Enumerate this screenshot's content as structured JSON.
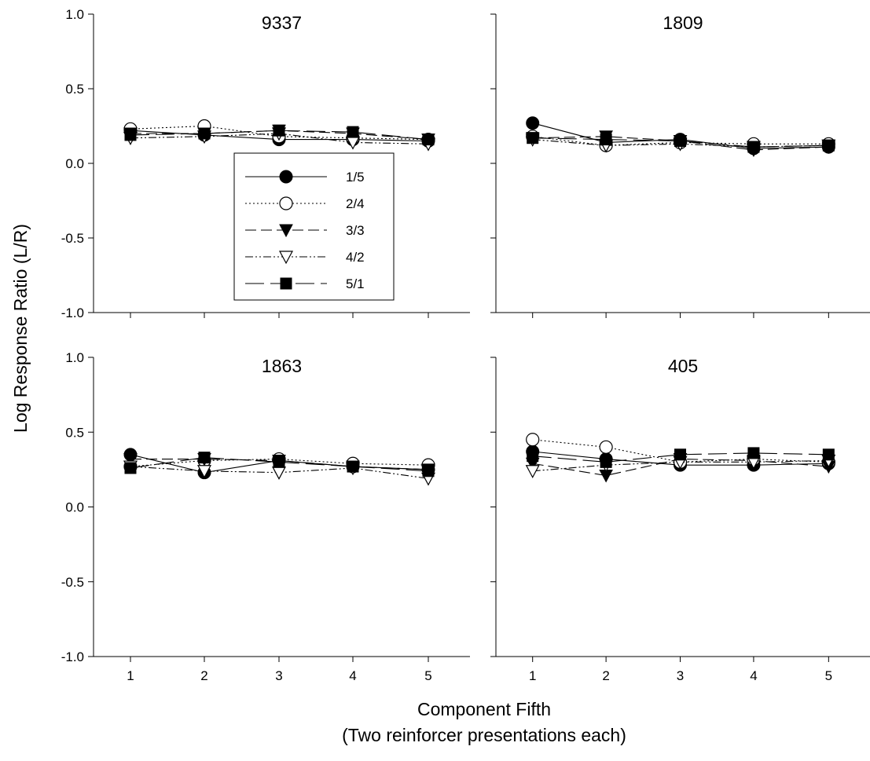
{
  "figure": {
    "ylabel": "Log Response Ratio (L/R)",
    "xlabel_line1": "Component Fifth",
    "xlabel_line2": "(Two reinforcer presentations each)"
  },
  "legend": {
    "placement": "inside top-left panel",
    "entries": [
      {
        "label": "1/5",
        "marker": "filled-circle",
        "line": "solid"
      },
      {
        "label": "2/4",
        "marker": "open-circle",
        "line": "dotted"
      },
      {
        "label": "3/3",
        "marker": "filled-triangle-down",
        "line": "dashed"
      },
      {
        "label": "4/2",
        "marker": "open-triangle-down",
        "line": "dash-dot-dot"
      },
      {
        "label": "5/1",
        "marker": "filled-square",
        "line": "long-dash"
      }
    ]
  },
  "chart_data": [
    {
      "type": "line",
      "title": "9337",
      "x": [
        1,
        2,
        3,
        4,
        5
      ],
      "xticks": [
        "1",
        "2",
        "3",
        "4",
        "5"
      ],
      "ylim": [
        -1.0,
        1.0
      ],
      "yticks": [
        "1.0",
        "0.5",
        "0.0",
        "-0.5",
        "-1.0"
      ],
      "series": [
        {
          "name": "1/5",
          "values": [
            0.22,
            0.19,
            0.16,
            0.16,
            0.15
          ]
        },
        {
          "name": "2/4",
          "values": [
            0.23,
            0.25,
            0.18,
            0.17,
            0.16
          ]
        },
        {
          "name": "3/3",
          "values": [
            0.2,
            0.2,
            0.22,
            0.2,
            0.16
          ]
        },
        {
          "name": "4/2",
          "values": [
            0.17,
            0.18,
            0.2,
            0.14,
            0.13
          ]
        },
        {
          "name": "5/1",
          "values": [
            0.19,
            0.2,
            0.22,
            0.21,
            0.16
          ]
        }
      ]
    },
    {
      "type": "line",
      "title": "1809",
      "x": [
        1,
        2,
        3,
        4,
        5
      ],
      "xticks": [
        "1",
        "2",
        "3",
        "4",
        "5"
      ],
      "ylim": [
        -1.0,
        1.0
      ],
      "yticks": [
        "1.0",
        "0.5",
        "0.0",
        "-0.5",
        "-1.0"
      ],
      "series": [
        {
          "name": "1/5",
          "values": [
            0.27,
            0.14,
            0.16,
            0.1,
            0.11
          ]
        },
        {
          "name": "2/4",
          "values": [
            0.18,
            0.12,
            0.14,
            0.13,
            0.13
          ]
        },
        {
          "name": "3/3",
          "values": [
            0.17,
            0.18,
            0.15,
            0.09,
            0.11
          ]
        },
        {
          "name": "4/2",
          "values": [
            0.16,
            0.12,
            0.13,
            0.11,
            0.12
          ]
        },
        {
          "name": "5/1",
          "values": [
            0.17,
            0.16,
            0.15,
            0.11,
            0.12
          ]
        }
      ]
    },
    {
      "type": "line",
      "title": "1863",
      "x": [
        1,
        2,
        3,
        4,
        5
      ],
      "xticks": [
        "1",
        "2",
        "3",
        "4",
        "5"
      ],
      "ylim": [
        -1.0,
        1.0
      ],
      "yticks": [
        "1.0",
        "0.5",
        "0.0",
        "-0.5",
        "-1.0"
      ],
      "series": [
        {
          "name": "1/5",
          "values": [
            0.35,
            0.23,
            0.31,
            0.27,
            0.25
          ]
        },
        {
          "name": "2/4",
          "values": [
            0.27,
            0.31,
            0.32,
            0.29,
            0.28
          ]
        },
        {
          "name": "3/3",
          "values": [
            0.32,
            0.32,
            0.31,
            0.27,
            0.25
          ]
        },
        {
          "name": "4/2",
          "values": [
            0.27,
            0.24,
            0.23,
            0.26,
            0.19
          ]
        },
        {
          "name": "5/1",
          "values": [
            0.26,
            0.33,
            0.3,
            0.27,
            0.24
          ]
        }
      ]
    },
    {
      "type": "line",
      "title": "405",
      "x": [
        1,
        2,
        3,
        4,
        5
      ],
      "xticks": [
        "1",
        "2",
        "3",
        "4",
        "5"
      ],
      "ylim": [
        -1.0,
        1.0
      ],
      "yticks": [
        "1.0",
        "0.5",
        "0.0",
        "-0.5",
        "-1.0"
      ],
      "series": [
        {
          "name": "1/5",
          "values": [
            0.37,
            0.32,
            0.28,
            0.28,
            0.29
          ]
        },
        {
          "name": "2/4",
          "values": [
            0.45,
            0.4,
            0.3,
            0.32,
            0.3
          ]
        },
        {
          "name": "3/3",
          "values": [
            0.29,
            0.21,
            0.32,
            0.31,
            0.27
          ]
        },
        {
          "name": "4/2",
          "values": [
            0.24,
            0.28,
            0.3,
            0.3,
            0.31
          ]
        },
        {
          "name": "5/1",
          "values": [
            0.34,
            0.3,
            0.35,
            0.36,
            0.35
          ]
        }
      ]
    }
  ]
}
